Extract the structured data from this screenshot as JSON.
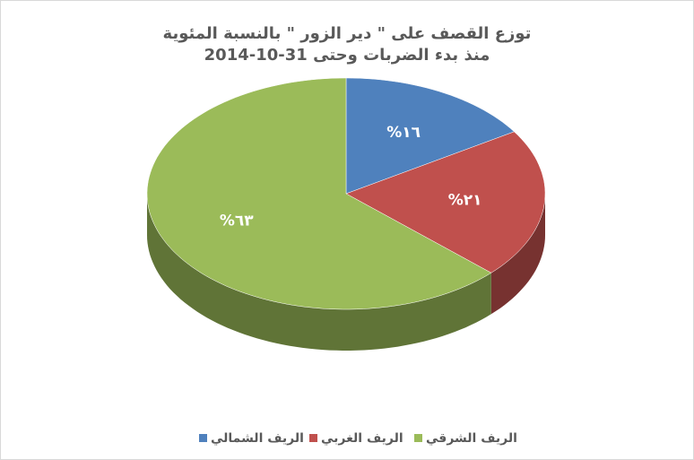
{
  "chart_data": {
    "type": "pie",
    "title": "توزع القصف على \"  دير الزور \" بالنسبة المئوية",
    "subtitle": "منذ بدء الضربات وحتى 31-10-2014",
    "categories": [
      "الريف الشمالي",
      "الريف الغربي",
      "الريف الشرقي"
    ],
    "values": [
      16,
      21,
      63
    ],
    "value_labels": [
      "١٦%",
      "٢١%",
      "٦٣%"
    ],
    "colors": [
      "#4f81bd",
      "#c0504d",
      "#9bbb59"
    ]
  }
}
